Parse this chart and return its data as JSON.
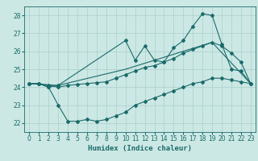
{
  "xlabel": "Humidex (Indice chaleur)",
  "ylabel": "",
  "bg_color": "#cce8e4",
  "grid_color": "#aacfcc",
  "line_color": "#1a6b6b",
  "xlim": [
    -0.5,
    23.5
  ],
  "ylim": [
    21.5,
    28.5
  ],
  "xticks": [
    0,
    1,
    2,
    3,
    4,
    5,
    6,
    7,
    8,
    9,
    10,
    11,
    12,
    13,
    14,
    15,
    16,
    17,
    18,
    19,
    20,
    21,
    22,
    23
  ],
  "yticks": [
    22,
    23,
    24,
    25,
    26,
    27,
    28
  ],
  "line1_x": [
    0,
    1,
    2,
    3,
    10,
    11,
    12,
    13,
    14,
    15,
    16,
    17,
    18,
    19,
    20,
    21,
    22,
    23
  ],
  "line1_y": [
    24.2,
    24.2,
    24.0,
    24.1,
    26.6,
    25.5,
    26.3,
    25.5,
    25.4,
    26.2,
    26.6,
    27.4,
    28.1,
    28.0,
    26.4,
    25.0,
    24.9,
    24.2
  ],
  "line2_x": [
    0,
    1,
    2,
    3,
    4,
    5,
    6,
    7,
    8,
    9,
    10,
    11,
    12,
    13,
    14,
    15,
    16,
    17,
    18,
    19,
    20,
    21,
    22,
    23
  ],
  "line2_y": [
    24.2,
    24.2,
    24.1,
    24.0,
    24.1,
    24.15,
    24.2,
    24.25,
    24.3,
    24.5,
    24.7,
    24.9,
    25.1,
    25.2,
    25.4,
    25.6,
    25.9,
    26.1,
    26.3,
    26.5,
    26.3,
    25.9,
    25.4,
    24.2
  ],
  "line3_x": [
    0,
    1,
    2,
    3,
    4,
    5,
    6,
    7,
    8,
    9,
    10,
    11,
    12,
    13,
    14,
    15,
    16,
    17,
    18,
    19,
    20,
    21,
    22,
    23
  ],
  "line3_y": [
    24.2,
    24.2,
    24.0,
    23.0,
    22.1,
    22.1,
    22.2,
    22.1,
    22.2,
    22.4,
    22.6,
    23.0,
    23.2,
    23.4,
    23.6,
    23.8,
    24.0,
    24.2,
    24.3,
    24.5,
    24.5,
    24.4,
    24.3,
    24.2
  ],
  "line4_x": [
    0,
    3,
    10,
    19,
    23
  ],
  "line4_y": [
    24.2,
    24.1,
    25.0,
    26.5,
    24.2
  ]
}
